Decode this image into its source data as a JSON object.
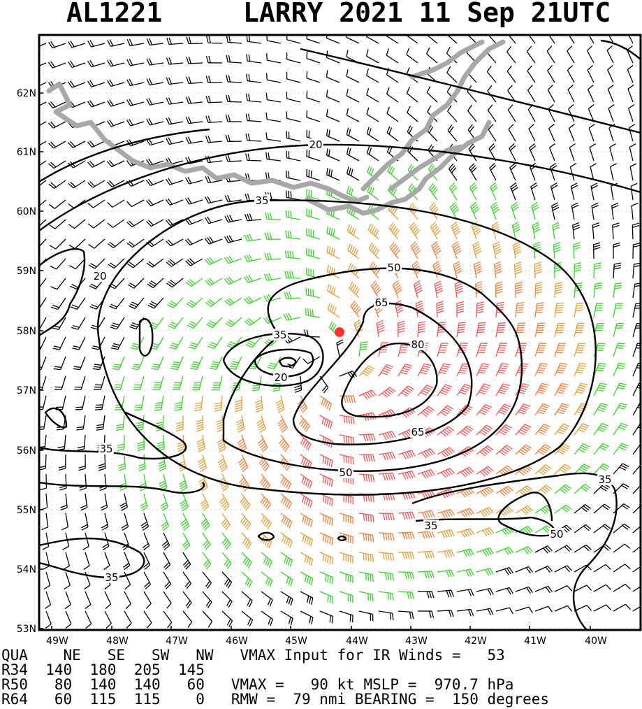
{
  "header": {
    "storm_id": "AL1221",
    "storm_name_time": "LARRY 2021 11 Sep 21UTC"
  },
  "map": {
    "lat_labels": [
      "62N",
      "61N",
      "60N",
      "59N",
      "58N",
      "57N",
      "56N",
      "55N",
      "54N",
      "53N"
    ],
    "lon_labels": [
      "49W",
      "48W",
      "47W",
      "46W",
      "45W",
      "44W",
      "43W",
      "42W",
      "41W",
      "40W"
    ],
    "contour_labels": [
      "20",
      "35",
      "20",
      "50",
      "65",
      "35",
      "20",
      "80",
      "65",
      "35",
      "50",
      "35",
      "35",
      "50",
      "35"
    ],
    "colors": {
      "land": "#a8a8a8",
      "wind_low": "#000000",
      "wind_35": "#3fcf2f",
      "wind_50": "#e0a040",
      "wind_65": "#ee8040",
      "wind_80": "#ee5858",
      "center": "#ff3030"
    },
    "center_icon": "storm-center-dot"
  },
  "info": {
    "header_row": [
      "QUA",
      "NE",
      "SE",
      "SW",
      "NW"
    ],
    "r34": [
      "R34",
      "140",
      "180",
      "205",
      "145"
    ],
    "r50": [
      "R50",
      "80",
      "140",
      "140",
      "60"
    ],
    "r64": [
      "R64",
      "60",
      "115",
      "115",
      "0"
    ],
    "vmax_ir_text": "VMAX Input for IR Winds =",
    "vmax_ir_value": "53",
    "vmax_label": "VMAX =",
    "vmax_value": "90 kt",
    "mslp_label": "MSLP =",
    "mslp_value": "970.7 hPa",
    "rmw_label": "RMW =",
    "rmw_value": "79 nmi",
    "bearing_label": "BEARING =",
    "bearing_value": "150 degrees"
  }
}
